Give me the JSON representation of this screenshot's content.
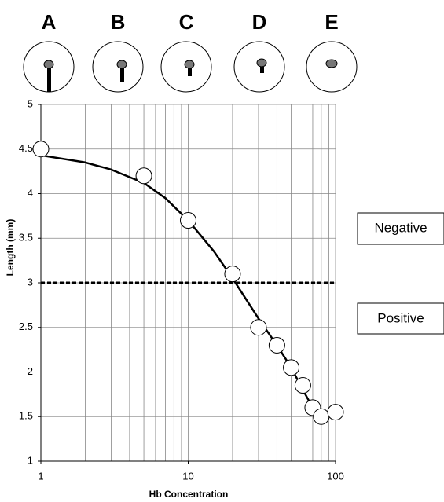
{
  "chart_data": {
    "type": "scatter",
    "panels": [
      "A",
      "B",
      "C",
      "D",
      "E"
    ],
    "xlabel": "Hb Concentration",
    "ylabel": "Length (mm)",
    "xlog": true,
    "grid": true,
    "xlim": [
      1,
      100
    ],
    "xticks": [
      1,
      10,
      100
    ],
    "xminorticks": [
      2,
      3,
      4,
      5,
      6,
      7,
      8,
      9,
      20,
      30,
      40,
      50,
      60,
      70,
      80,
      90
    ],
    "ylim": [
      1,
      5
    ],
    "yticks": [
      1,
      1.5,
      2,
      2.5,
      3,
      3.5,
      4,
      4.5,
      5
    ],
    "threshold": 3,
    "annotations": [
      "Negative",
      "Positive"
    ],
    "series": [
      {
        "kind": "points",
        "color": "#000000",
        "x": [
          1,
          5,
          10,
          20,
          30,
          40,
          50,
          60,
          70,
          80,
          100
        ],
        "values": [
          4.5,
          4.2,
          3.7,
          3.1,
          2.5,
          2.3,
          2.05,
          1.85,
          1.6,
          1.5,
          1.55
        ]
      },
      {
        "kind": "line",
        "color": "#000000",
        "x": [
          1,
          2,
          3,
          5,
          7,
          10,
          15,
          20,
          30,
          40,
          50,
          60,
          70,
          80,
          90,
          100
        ],
        "values": [
          4.43,
          4.35,
          4.27,
          4.12,
          3.95,
          3.7,
          3.35,
          3.05,
          2.6,
          2.3,
          2.05,
          1.8,
          1.6,
          1.52,
          1.52,
          1.62
        ]
      }
    ]
  }
}
